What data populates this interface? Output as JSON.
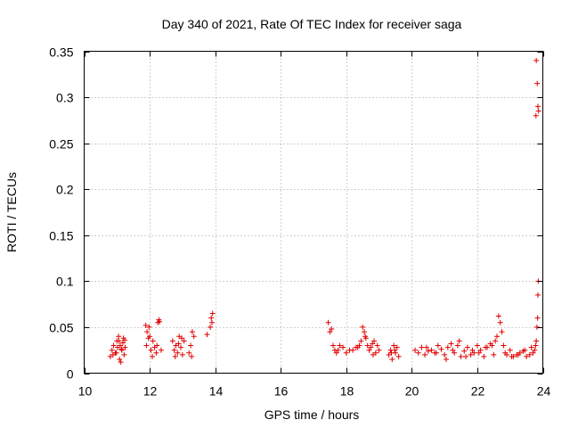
{
  "chart_data": {
    "type": "scatter",
    "title": "Day 340 of 2021, Rate Of TEC Index for receiver saga",
    "xlabel": "GPS time / hours",
    "ylabel": "ROTI / TECUs",
    "xlim": [
      10,
      24
    ],
    "ylim": [
      0,
      0.35
    ],
    "x_ticks": [
      10,
      12,
      14,
      16,
      18,
      20,
      22,
      24
    ],
    "x_tick_labels": [
      "10",
      "12",
      "14",
      "16",
      "18",
      "20",
      "22",
      "24"
    ],
    "y_ticks": [
      0,
      0.05,
      0.1,
      0.15,
      0.2,
      0.25,
      0.3,
      0.35
    ],
    "y_tick_labels": [
      "0",
      "0.05",
      "0.1",
      "0.15",
      "0.2",
      "0.25",
      "0.3",
      "0.35"
    ],
    "grid": true,
    "marker": "+",
    "marker_color": "#e00000",
    "series": [
      {
        "name": "ROTI",
        "x": [
          10.8,
          10.85,
          10.9,
          10.95,
          11.0,
          11.02,
          11.05,
          11.08,
          11.1,
          11.12,
          11.15,
          11.18,
          11.2,
          11.22,
          11.25,
          10.88,
          10.98,
          11.06,
          11.14,
          11.24,
          11.88,
          11.92,
          11.96,
          12.0,
          12.04,
          12.08,
          11.9,
          11.98,
          12.1,
          12.15,
          12.2,
          12.25,
          12.28,
          12.3,
          12.35,
          12.22,
          12.7,
          12.75,
          12.8,
          12.85,
          12.9,
          12.95,
          13.0,
          13.05,
          12.78,
          12.88,
          12.98,
          13.2,
          13.25,
          13.3,
          13.35,
          13.28,
          13.75,
          13.85,
          13.88,
          13.9,
          13.92,
          17.45,
          17.5,
          17.55,
          17.6,
          17.65,
          17.7,
          17.75,
          17.8,
          17.9,
          18.0,
          18.1,
          18.2,
          18.3,
          18.4,
          18.45,
          18.5,
          18.55,
          18.6,
          18.65,
          18.7,
          18.75,
          18.8,
          18.85,
          18.9,
          18.95,
          19.0,
          18.35,
          18.58,
          18.82,
          19.3,
          19.35,
          19.4,
          19.45,
          19.5,
          19.55,
          19.6,
          19.38,
          19.48,
          20.1,
          20.2,
          20.3,
          20.4,
          20.5,
          20.6,
          20.7,
          20.8,
          20.9,
          21.0,
          21.1,
          21.2,
          21.3,
          21.4,
          21.5,
          21.6,
          21.7,
          21.8,
          21.9,
          22.0,
          22.1,
          22.2,
          22.3,
          22.4,
          22.5,
          22.6,
          22.65,
          22.7,
          22.75,
          22.8,
          22.9,
          23.0,
          23.1,
          23.2,
          23.3,
          23.4,
          23.5,
          23.6,
          23.7,
          21.05,
          21.25,
          21.45,
          21.65,
          21.85,
          22.05,
          22.25,
          22.45,
          22.55,
          22.85,
          23.05,
          23.25,
          23.45,
          23.65,
          20.45,
          20.75,
          23.75,
          23.78,
          23.8,
          23.82,
          23.84,
          23.85,
          23.86,
          23.87,
          23.85,
          23.83,
          23.8,
          23.79
        ],
        "y": [
          0.018,
          0.025,
          0.03,
          0.022,
          0.035,
          0.028,
          0.04,
          0.015,
          0.03,
          0.012,
          0.025,
          0.033,
          0.038,
          0.02,
          0.028,
          0.02,
          0.022,
          0.035,
          0.026,
          0.036,
          0.052,
          0.045,
          0.038,
          0.04,
          0.025,
          0.018,
          0.03,
          0.05,
          0.035,
          0.028,
          0.022,
          0.055,
          0.058,
          0.056,
          0.025,
          0.03,
          0.035,
          0.025,
          0.03,
          0.022,
          0.04,
          0.028,
          0.02,
          0.035,
          0.018,
          0.032,
          0.038,
          0.022,
          0.03,
          0.045,
          0.04,
          0.018,
          0.042,
          0.05,
          0.06,
          0.055,
          0.065,
          0.055,
          0.045,
          0.048,
          0.03,
          0.025,
          0.022,
          0.025,
          0.03,
          0.028,
          0.022,
          0.025,
          0.025,
          0.028,
          0.03,
          0.035,
          0.05,
          0.045,
          0.038,
          0.03,
          0.025,
          0.028,
          0.032,
          0.035,
          0.022,
          0.03,
          0.025,
          0.028,
          0.04,
          0.02,
          0.02,
          0.025,
          0.015,
          0.03,
          0.022,
          0.028,
          0.018,
          0.022,
          0.025,
          0.025,
          0.022,
          0.028,
          0.02,
          0.024,
          0.025,
          0.022,
          0.03,
          0.026,
          0.02,
          0.028,
          0.032,
          0.022,
          0.03,
          0.018,
          0.024,
          0.028,
          0.02,
          0.022,
          0.03,
          0.025,
          0.018,
          0.028,
          0.032,
          0.02,
          0.04,
          0.062,
          0.055,
          0.045,
          0.03,
          0.02,
          0.025,
          0.018,
          0.02,
          0.022,
          0.024,
          0.018,
          0.02,
          0.022,
          0.015,
          0.025,
          0.035,
          0.018,
          0.025,
          0.022,
          0.028,
          0.03,
          0.035,
          0.022,
          0.018,
          0.02,
          0.025,
          0.028,
          0.028,
          0.022,
          0.025,
          0.03,
          0.035,
          0.05,
          0.06,
          0.085,
          0.1,
          0.285,
          0.29,
          0.315,
          0.34,
          0.28
        ]
      }
    ]
  }
}
